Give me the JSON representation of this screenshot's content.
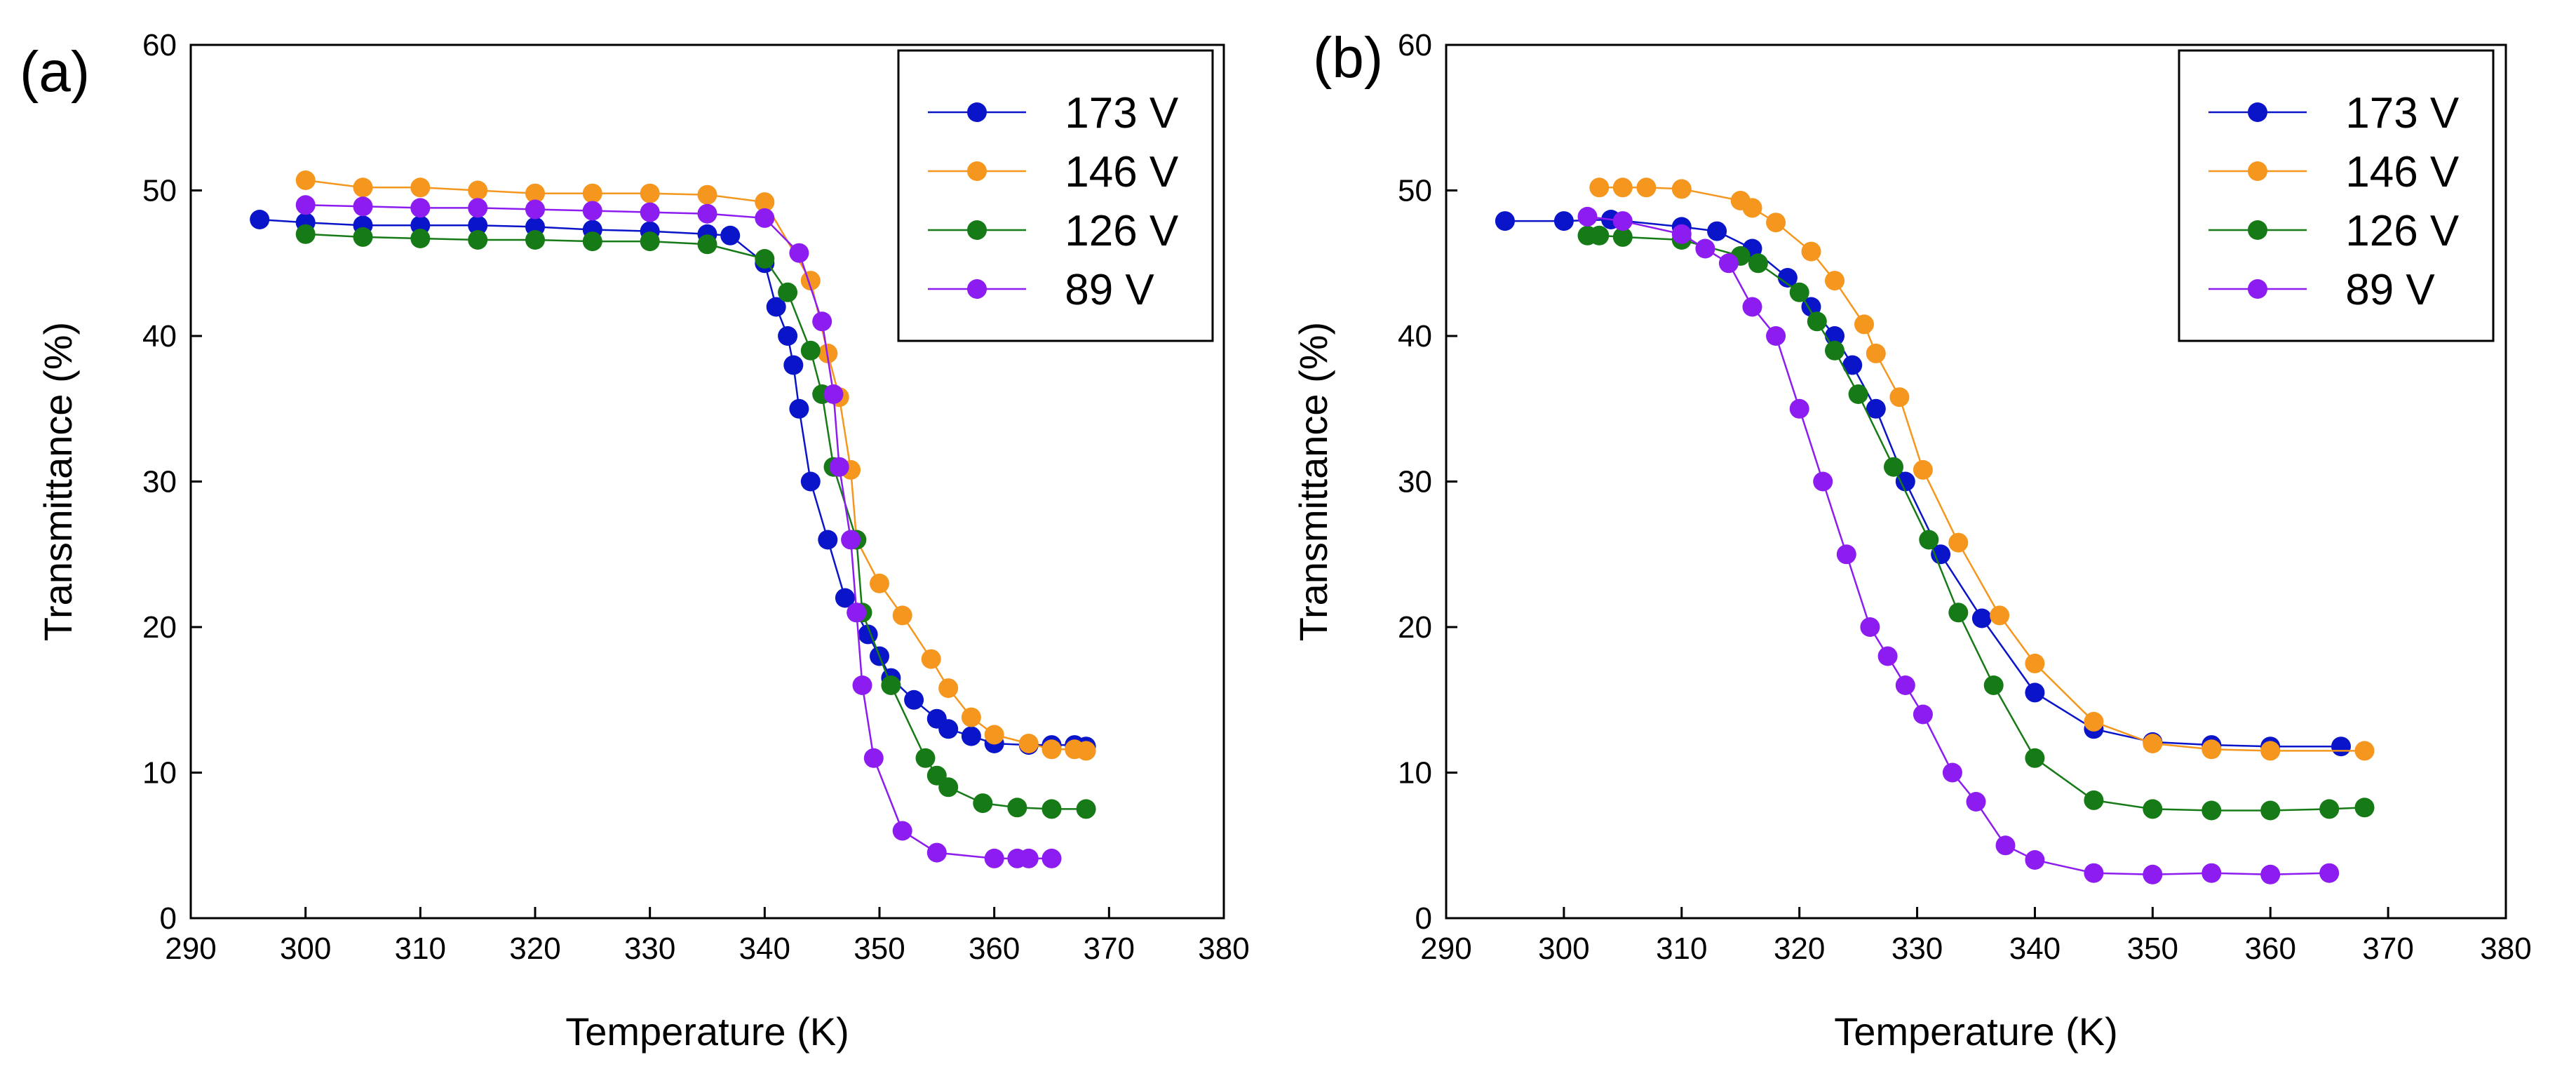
{
  "chart_data": [
    {
      "type": "line",
      "panel_label": "(a)",
      "xlabel": "Temperature (K)",
      "ylabel": "Transmittance (%)",
      "xlim": [
        290,
        380
      ],
      "ylim": [
        0,
        60
      ],
      "x_ticks": [
        "290",
        "300",
        "310",
        "320",
        "330",
        "340",
        "350",
        "360",
        "370",
        "380"
      ],
      "y_ticks": [
        "0",
        "10",
        "20",
        "30",
        "40",
        "50",
        "60"
      ],
      "legend_position": "top-right",
      "grid": false,
      "series": [
        {
          "name": "173 V",
          "color": "#0a14c8",
          "points": [
            [
              296,
              48.0
            ],
            [
              300,
              47.8
            ],
            [
              305,
              47.6
            ],
            [
              310,
              47.6
            ],
            [
              315,
              47.6
            ],
            [
              320,
              47.5
            ],
            [
              325,
              47.3
            ],
            [
              330,
              47.2
            ],
            [
              335,
              47.0
            ],
            [
              337,
              46.9
            ],
            [
              340,
              45.0
            ],
            [
              341,
              42.0
            ],
            [
              342,
              40.0
            ],
            [
              342.5,
              38.0
            ],
            [
              343,
              35.0
            ],
            [
              344,
              30.0
            ],
            [
              345.5,
              26.0
            ],
            [
              347,
              22.0
            ],
            [
              348,
              21.0
            ],
            [
              349,
              19.5
            ],
            [
              350,
              18.0
            ],
            [
              351,
              16.5
            ],
            [
              353,
              15.0
            ],
            [
              355,
              13.7
            ],
            [
              356,
              13.0
            ],
            [
              358,
              12.5
            ],
            [
              360,
              12.0
            ],
            [
              363,
              11.9
            ],
            [
              365,
              11.9
            ],
            [
              367,
              11.9
            ],
            [
              368,
              11.8
            ]
          ]
        },
        {
          "name": "146 V",
          "color": "#f5961e",
          "points": [
            [
              300,
              50.7
            ],
            [
              305,
              50.2
            ],
            [
              310,
              50.2
            ],
            [
              315,
              50.0
            ],
            [
              320,
              49.8
            ],
            [
              325,
              49.8
            ],
            [
              330,
              49.8
            ],
            [
              335,
              49.7
            ],
            [
              340,
              49.2
            ],
            [
              344,
              43.8
            ],
            [
              345.5,
              38.8
            ],
            [
              346.5,
              35.8
            ],
            [
              347.5,
              30.8
            ],
            [
              348,
              26.0
            ],
            [
              350,
              23.0
            ],
            [
              352,
              20.8
            ],
            [
              354.5,
              17.8
            ],
            [
              356,
              15.8
            ],
            [
              358,
              13.8
            ],
            [
              360,
              12.6
            ],
            [
              363,
              12.0
            ],
            [
              365,
              11.6
            ],
            [
              367,
              11.6
            ],
            [
              368,
              11.5
            ]
          ]
        },
        {
          "name": "126 V",
          "color": "#167b16",
          "points": [
            [
              300,
              47.0
            ],
            [
              305,
              46.8
            ],
            [
              310,
              46.7
            ],
            [
              315,
              46.6
            ],
            [
              320,
              46.6
            ],
            [
              325,
              46.5
            ],
            [
              330,
              46.5
            ],
            [
              335,
              46.3
            ],
            [
              340,
              45.3
            ],
            [
              342,
              43.0
            ],
            [
              344,
              39.0
            ],
            [
              345,
              36.0
            ],
            [
              346,
              31.0
            ],
            [
              348,
              26.0
            ],
            [
              348.5,
              21.0
            ],
            [
              351,
              16.0
            ],
            [
              354,
              11.0
            ],
            [
              355,
              9.8
            ],
            [
              356,
              9.0
            ],
            [
              359,
              7.9
            ],
            [
              362,
              7.6
            ],
            [
              365,
              7.5
            ],
            [
              368,
              7.5
            ]
          ]
        },
        {
          "name": "89 V",
          "color": "#8c1cf0",
          "points": [
            [
              300,
              49.0
            ],
            [
              305,
              48.9
            ],
            [
              310,
              48.8
            ],
            [
              315,
              48.8
            ],
            [
              320,
              48.7
            ],
            [
              325,
              48.6
            ],
            [
              330,
              48.5
            ],
            [
              335,
              48.4
            ],
            [
              340,
              48.1
            ],
            [
              343,
              45.7
            ],
            [
              345,
              41.0
            ],
            [
              346,
              36.0
            ],
            [
              346.5,
              31.0
            ],
            [
              347.5,
              26.0
            ],
            [
              348,
              21.0
            ],
            [
              348.5,
              16.0
            ],
            [
              349.5,
              11.0
            ],
            [
              352,
              6.0
            ],
            [
              355,
              4.5
            ],
            [
              360,
              4.1
            ],
            [
              362,
              4.1
            ],
            [
              363,
              4.1
            ],
            [
              365,
              4.1
            ]
          ]
        }
      ]
    },
    {
      "type": "line",
      "panel_label": "(b)",
      "xlabel": "Temperature (K)",
      "ylabel": "Transmittance (%)",
      "xlim": [
        290,
        380
      ],
      "ylim": [
        0,
        60
      ],
      "x_ticks": [
        "290",
        "300",
        "310",
        "320",
        "330",
        "340",
        "350",
        "360",
        "370",
        "380"
      ],
      "y_ticks": [
        "0",
        "10",
        "20",
        "30",
        "40",
        "50",
        "60"
      ],
      "legend_position": "top-right",
      "grid": false,
      "series": [
        {
          "name": "173 V",
          "color": "#0a14c8",
          "points": [
            [
              295,
              47.9
            ],
            [
              300,
              47.9
            ],
            [
              304,
              48.0
            ],
            [
              310,
              47.5
            ],
            [
              313,
              47.2
            ],
            [
              316,
              46.0
            ],
            [
              319,
              44.0
            ],
            [
              321,
              42.0
            ],
            [
              323,
              40.0
            ],
            [
              324.5,
              38.0
            ],
            [
              326.5,
              35.0
            ],
            [
              329,
              30.0
            ],
            [
              332,
              25.0
            ],
            [
              335.5,
              20.6
            ],
            [
              340,
              15.5
            ],
            [
              345,
              13.0
            ],
            [
              350,
              12.1
            ],
            [
              355,
              11.9
            ],
            [
              360,
              11.8
            ],
            [
              366,
              11.8
            ]
          ]
        },
        {
          "name": "146 V",
          "color": "#f5961e",
          "points": [
            [
              303,
              50.2
            ],
            [
              305,
              50.2
            ],
            [
              307,
              50.2
            ],
            [
              310,
              50.1
            ],
            [
              315,
              49.3
            ],
            [
              316,
              48.8
            ],
            [
              318,
              47.8
            ],
            [
              321,
              45.8
            ],
            [
              323,
              43.8
            ],
            [
              325.5,
              40.8
            ],
            [
              326.5,
              38.8
            ],
            [
              328.5,
              35.8
            ],
            [
              330.5,
              30.8
            ],
            [
              333.5,
              25.8
            ],
            [
              337,
              20.8
            ],
            [
              340,
              17.5
            ],
            [
              345,
              13.5
            ],
            [
              350,
              12.0
            ],
            [
              355,
              11.6
            ],
            [
              360,
              11.5
            ],
            [
              368,
              11.5
            ]
          ]
        },
        {
          "name": "126 V",
          "color": "#167b16",
          "points": [
            [
              302,
              46.9
            ],
            [
              303,
              46.9
            ],
            [
              305,
              46.8
            ],
            [
              310,
              46.6
            ],
            [
              315,
              45.5
            ],
            [
              316.5,
              45.0
            ],
            [
              320,
              43.0
            ],
            [
              321.5,
              41.0
            ],
            [
              323,
              39.0
            ],
            [
              325,
              36.0
            ],
            [
              328,
              31.0
            ],
            [
              331,
              26.0
            ],
            [
              333.5,
              21.0
            ],
            [
              336.5,
              16.0
            ],
            [
              340,
              11.0
            ],
            [
              345,
              8.1
            ],
            [
              350,
              7.5
            ],
            [
              355,
              7.4
            ],
            [
              360,
              7.4
            ],
            [
              365,
              7.5
            ],
            [
              368,
              7.6
            ]
          ]
        },
        {
          "name": "89 V",
          "color": "#8c1cf0",
          "points": [
            [
              302,
              48.2
            ],
            [
              305,
              47.9
            ],
            [
              310,
              47.0
            ],
            [
              312,
              46.0
            ],
            [
              314,
              45.0
            ],
            [
              316,
              42.0
            ],
            [
              318,
              40.0
            ],
            [
              320,
              35.0
            ],
            [
              322,
              30.0
            ],
            [
              324,
              25.0
            ],
            [
              326,
              20.0
            ],
            [
              327.5,
              18.0
            ],
            [
              329,
              16.0
            ],
            [
              330.5,
              14.0
            ],
            [
              333,
              10.0
            ],
            [
              335,
              8.0
            ],
            [
              337.5,
              5.0
            ],
            [
              340,
              4.0
            ],
            [
              345,
              3.1
            ],
            [
              350,
              3.0
            ],
            [
              355,
              3.1
            ],
            [
              360,
              3.0
            ],
            [
              365,
              3.1
            ]
          ]
        }
      ]
    }
  ]
}
